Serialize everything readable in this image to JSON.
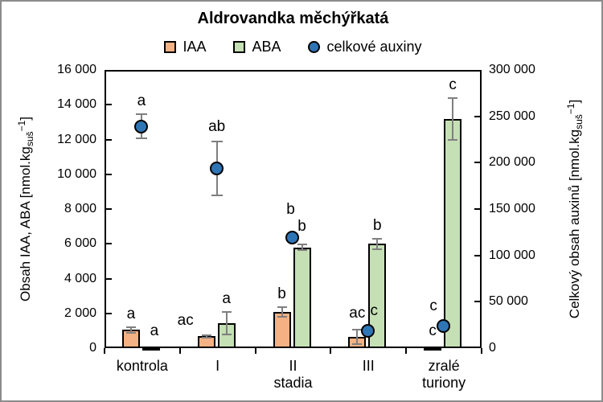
{
  "chart_data": {
    "type": "bar",
    "title": "Aldrovandka měchýřkatá",
    "categories": [
      [
        "kontrola"
      ],
      [
        "I"
      ],
      [
        "II",
        "stadia"
      ],
      [
        "III"
      ],
      [
        "zralé",
        "turiony"
      ]
    ],
    "left_axis": {
      "label_text": "Obsah IAA, ABA [nmol.kg",
      "label_sub": "suš",
      "label_sup": "−1",
      "label_close": "]",
      "min": 0,
      "max": 16000,
      "step": 2000
    },
    "right_axis": {
      "label_text": "Celkový obsah auxinů [nmol.kg",
      "label_sub": "suš",
      "label_sup": "−1",
      "label_close": "]",
      "min": 0,
      "max": 300000,
      "step": 50000
    },
    "grid": false,
    "legend_position": "top",
    "error_bar_color": "#7f7f7f",
    "series": [
      {
        "name": "IAA",
        "kind": "bar",
        "axis": "left",
        "color": "#F4B183",
        "values": [
          1050,
          680,
          2100,
          650,
          40
        ],
        "errors": [
          150,
          80,
          280,
          400,
          0
        ],
        "letters": [
          "a",
          "ac",
          "b",
          "ac",
          "c"
        ],
        "letter_offsets": [
          [
            0,
            0
          ],
          [
            -26,
            -2
          ],
          [
            0,
            0
          ],
          [
            0,
            -4
          ],
          [
            0,
            -4
          ]
        ]
      },
      {
        "name": "ABA",
        "kind": "bar",
        "axis": "left",
        "color": "#C5E0B4",
        "values": [
          60,
          1450,
          5800,
          6000,
          13200
        ],
        "errors": [
          0,
          650,
          150,
          300,
          1200
        ],
        "letters": [
          "a",
          "a",
          "b",
          "b",
          "c"
        ],
        "letter_offsets": [
          [
            4,
            -4
          ],
          [
            0,
            0
          ],
          [
            0,
            -6
          ],
          [
            0,
            0
          ],
          [
            0,
            0
          ]
        ]
      },
      {
        "name": "celkové auxiny",
        "kind": "scatter",
        "axis": "right",
        "color": "#2E75B6",
        "values": [
          239000,
          194000,
          119500,
          19000,
          24000
        ],
        "errors": [
          13000,
          29000,
          0,
          0,
          0
        ],
        "letters": [
          "a",
          "ab",
          "b",
          "c",
          "c"
        ],
        "letter_offsets": [
          [
            0,
            0
          ],
          [
            0,
            -2
          ],
          [
            -2,
            -10
          ],
          [
            8,
            0
          ],
          [
            -12,
            0
          ]
        ]
      }
    ]
  }
}
